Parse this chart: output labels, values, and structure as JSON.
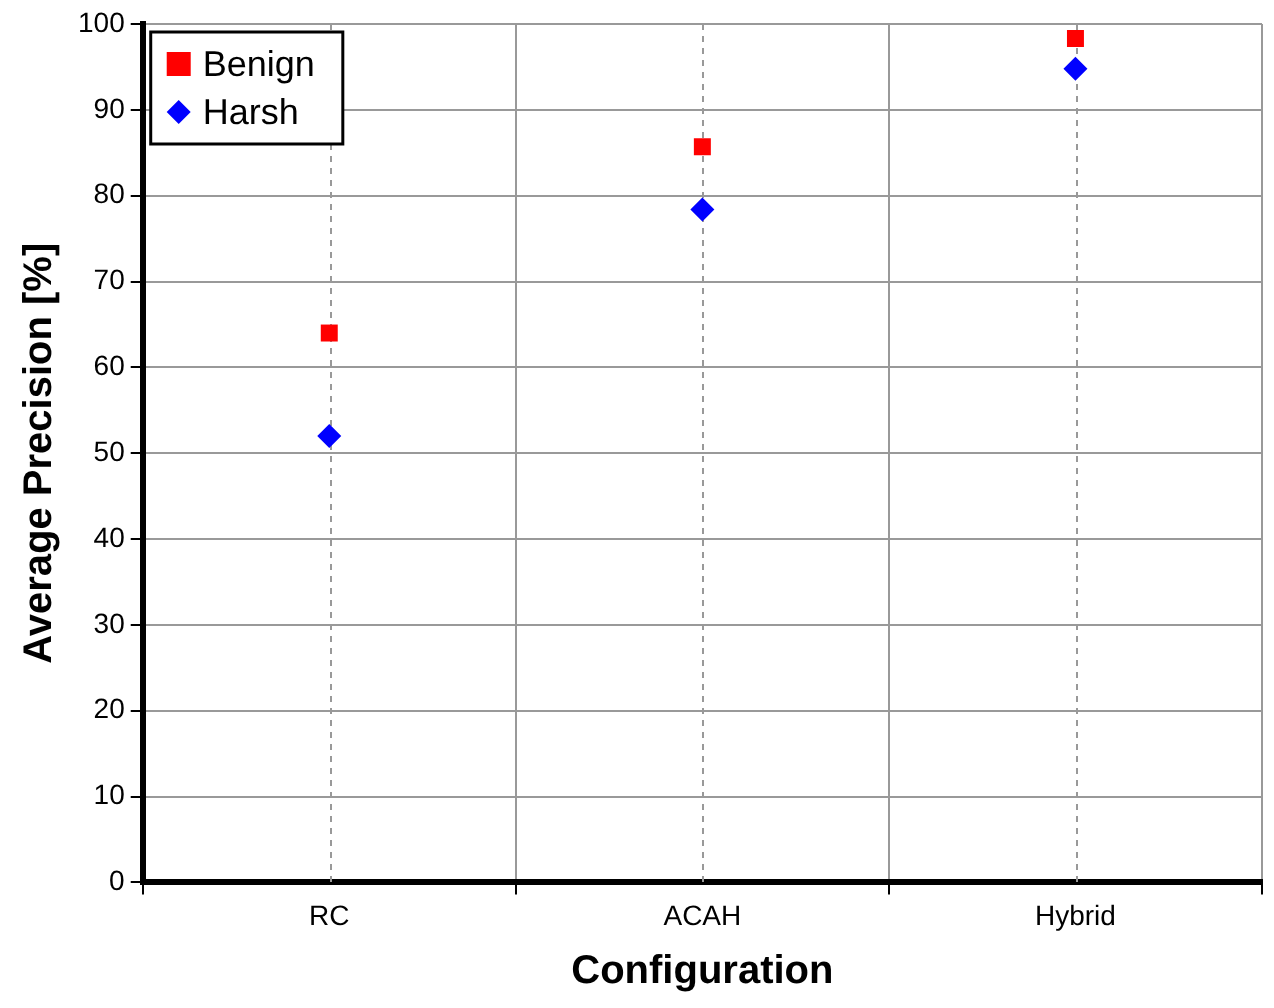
{
  "chart_data": {
    "type": "scatter",
    "xlabel": "Configuration",
    "ylabel": "Average Precision [%]",
    "categories": [
      "RC",
      "ACAH",
      "Hybrid"
    ],
    "series": [
      {
        "name": "Benign",
        "color": "#ff0000",
        "marker": "square",
        "values": [
          64,
          85.7,
          98.3
        ]
      },
      {
        "name": "Harsh",
        "color": "#0000ff",
        "marker": "diamond",
        "values": [
          52,
          78.4,
          94.8
        ]
      }
    ],
    "ylim": [
      0,
      100
    ],
    "yticks": [
      0,
      10,
      20,
      30,
      40,
      50,
      60,
      70,
      80,
      90,
      100
    ],
    "grid": true,
    "legend": "top left"
  }
}
